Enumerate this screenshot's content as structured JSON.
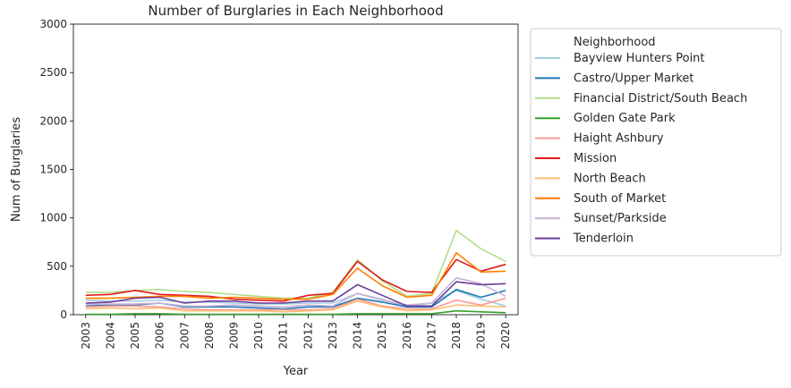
{
  "chart_data": {
    "type": "line",
    "title": "Number of Burglaries in Each Neighborhood",
    "xlabel": "Year",
    "ylabel": "Num of Burglaries",
    "ylim": [
      0,
      3000
    ],
    "yticks": [
      0,
      500,
      1000,
      1500,
      2000,
      2500,
      3000
    ],
    "x": [
      2003,
      2004,
      2005,
      2006,
      2007,
      2008,
      2009,
      2010,
      2011,
      2012,
      2013,
      2014,
      2015,
      2016,
      2017,
      2018,
      2019,
      2020
    ],
    "grid": false,
    "legend": {
      "title": "Neighborhood",
      "placement": "outside-right"
    },
    "series": [
      {
        "name": "Bayview Hunters Point",
        "color": "#a6cee3",
        "values": [
          150,
          140,
          140,
          150,
          130,
          130,
          120,
          110,
          110,
          120,
          120,
          220,
          160,
          80,
          120,
          250,
          160,
          90
        ]
      },
      {
        "name": "Castro/Upper Market",
        "color": "#1f78b4",
        "values": [
          90,
          100,
          100,
          120,
          80,
          80,
          80,
          70,
          60,
          80,
          80,
          170,
          130,
          80,
          80,
          260,
          180,
          250
        ]
      },
      {
        "name": "Financial District/South Beach",
        "color": "#b2df8a",
        "values": [
          230,
          230,
          250,
          260,
          240,
          230,
          210,
          190,
          170,
          170,
          230,
          570,
          350,
          190,
          220,
          870,
          680,
          550
        ]
      },
      {
        "name": "Golden Gate Park",
        "color": "#33a02c",
        "values": [
          5,
          5,
          10,
          10,
          5,
          5,
          5,
          5,
          5,
          5,
          5,
          10,
          10,
          10,
          10,
          40,
          30,
          20
        ]
      },
      {
        "name": "Haight Ashbury",
        "color": "#fb9a99",
        "values": [
          80,
          90,
          90,
          80,
          60,
          50,
          50,
          50,
          50,
          50,
          60,
          160,
          90,
          60,
          60,
          150,
          100,
          170
        ]
      },
      {
        "name": "Mission",
        "color": "#e31a1c",
        "values": [
          200,
          210,
          250,
          210,
          200,
          190,
          160,
          150,
          140,
          200,
          220,
          550,
          360,
          240,
          230,
          570,
          450,
          520
        ]
      },
      {
        "name": "North Beach",
        "color": "#fdbf6f",
        "values": [
          60,
          70,
          60,
          70,
          40,
          40,
          40,
          40,
          30,
          40,
          50,
          140,
          80,
          40,
          50,
          100,
          90,
          80
        ]
      },
      {
        "name": "South of Market",
        "color": "#ff7f00",
        "values": [
          170,
          170,
          180,
          190,
          190,
          170,
          180,
          170,
          160,
          160,
          210,
          480,
          300,
          180,
          200,
          640,
          440,
          450
        ]
      },
      {
        "name": "Sunset/Parkside",
        "color": "#cab2d6",
        "values": [
          110,
          110,
          110,
          120,
          90,
          90,
          100,
          90,
          80,
          100,
          90,
          220,
          150,
          100,
          120,
          380,
          320,
          190
        ]
      },
      {
        "name": "Tenderloin",
        "color": "#6a3d9a",
        "values": [
          120,
          130,
          170,
          180,
          120,
          140,
          140,
          120,
          120,
          140,
          140,
          310,
          200,
          90,
          90,
          340,
          310,
          320
        ]
      }
    ]
  }
}
